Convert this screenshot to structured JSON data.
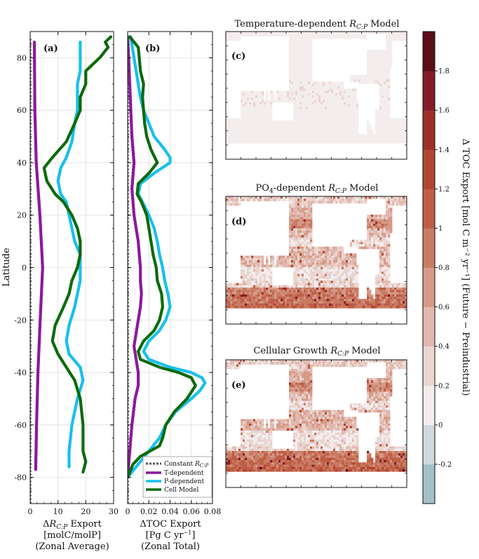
{
  "chart_data": [
    {
      "type": "line",
      "panel": "(a)",
      "orientation": "horizontal-profile",
      "xlabel_lines": [
        "ΔR_C:P Export",
        "[molC/molP]",
        "(Zonal Average)"
      ],
      "ylabel": "Latitude",
      "xlim": [
        0,
        30
      ],
      "ylim": [
        -90,
        90
      ],
      "xticks": [
        0,
        10,
        20,
        30
      ],
      "yticks": [
        -80,
        -60,
        -40,
        -20,
        0,
        20,
        40,
        60,
        80
      ],
      "grid": true,
      "series": [
        {
          "name": "Constant R_C:P",
          "color": "#555555",
          "style": "dotted",
          "lat": [
            -90,
            88
          ],
          "values": [
            0,
            0
          ]
        },
        {
          "name": "T-dependent",
          "color": "#8b1a9b",
          "lat": [
            -77,
            -60,
            -40,
            -20,
            0,
            20,
            40,
            60,
            86
          ],
          "values": [
            2.0,
            2.3,
            2.8,
            3.6,
            4.5,
            3.5,
            2.2,
            1.7,
            1.5
          ]
        },
        {
          "name": "P-dependent",
          "color": "#18bfee",
          "lat": [
            -76,
            -70,
            -60,
            -50,
            -43,
            -38,
            -33,
            -28,
            -22,
            -15,
            -10,
            -5,
            0,
            5,
            10,
            15,
            20,
            25,
            28,
            33,
            38,
            42,
            48,
            55,
            60,
            65,
            70,
            75,
            80,
            86
          ],
          "values": [
            14,
            14,
            15,
            17,
            19,
            18,
            14,
            13,
            14,
            16,
            17,
            18,
            18,
            18,
            16,
            15,
            14,
            13,
            11,
            10,
            11,
            13,
            15,
            16,
            17,
            17,
            17,
            18,
            18,
            18
          ]
        },
        {
          "name": "Cell Model",
          "color": "#0c6b0c",
          "lat": [
            -78,
            -74,
            -70,
            -60,
            -50,
            -43,
            -38,
            -33,
            -28,
            -22,
            -15,
            -10,
            -5,
            0,
            5,
            10,
            15,
            20,
            25,
            28,
            33,
            38,
            42,
            48,
            55,
            60,
            65,
            70,
            75,
            80,
            84,
            86,
            88
          ],
          "values": [
            19,
            20,
            19,
            19,
            18,
            16,
            13,
            10,
            8,
            9,
            12,
            14,
            15,
            17,
            18,
            18,
            17,
            15,
            12,
            9,
            6,
            5,
            8,
            13,
            16,
            18,
            18,
            20,
            20,
            25,
            28,
            27,
            29
          ]
        }
      ]
    },
    {
      "type": "line",
      "panel": "(b)",
      "orientation": "horizontal-profile",
      "xlabel_lines": [
        "ΔTOC Export",
        "[Pg C yr⁻¹]",
        "(Zonal Total)"
      ],
      "xlim": [
        0,
        0.08
      ],
      "ylim": [
        -90,
        90
      ],
      "xticks": [
        "0",
        "0.02",
        "0.04",
        "0.06",
        "0.08"
      ],
      "xtick_values": [
        0,
        0.02,
        0.04,
        0.06,
        0.08
      ],
      "grid": true,
      "series": [
        {
          "name": "Constant R_C:P",
          "color": "#555555",
          "style": "dotted",
          "lat": [
            -90,
            88
          ],
          "values": [
            0,
            0
          ]
        },
        {
          "name": "T-dependent",
          "color": "#8b1a9b",
          "lat": [
            -80,
            -70,
            -60,
            -50,
            -45,
            -40,
            -35,
            -30,
            -25,
            -20,
            -15,
            -10,
            -5,
            0,
            5,
            10,
            15,
            20,
            25,
            30,
            35,
            40,
            45,
            50,
            60,
            70,
            80,
            88
          ],
          "values": [
            0,
            0.002,
            0.004,
            0.007,
            0.01,
            0.01,
            0.008,
            0.006,
            0.008,
            0.01,
            0.012,
            0.013,
            0.012,
            0.012,
            0.011,
            0.01,
            0.008,
            0.006,
            0.005,
            0.004,
            0.005,
            0.006,
            0.005,
            0.004,
            0.003,
            0.002,
            0.001,
            0
          ]
        },
        {
          "name": "P-dependent",
          "color": "#18bfee",
          "lat": [
            -80,
            -75,
            -70,
            -65,
            -60,
            -55,
            -50,
            -47,
            -44,
            -42,
            -40,
            -38,
            -35,
            -32,
            -28,
            -24,
            -20,
            -15,
            -10,
            -5,
            0,
            5,
            10,
            15,
            20,
            25,
            28,
            32,
            36,
            40,
            42,
            45,
            50,
            55,
            60,
            65,
            70,
            75,
            80,
            85,
            88
          ],
          "values": [
            0,
            0.01,
            0.02,
            0.03,
            0.036,
            0.045,
            0.06,
            0.068,
            0.073,
            0.07,
            0.06,
            0.04,
            0.02,
            0.015,
            0.02,
            0.03,
            0.036,
            0.04,
            0.038,
            0.035,
            0.033,
            0.03,
            0.028,
            0.025,
            0.02,
            0.014,
            0.01,
            0.012,
            0.025,
            0.04,
            0.04,
            0.035,
            0.025,
            0.02,
            0.015,
            0.012,
            0.01,
            0.008,
            0.006,
            0.004,
            0.003
          ]
        },
        {
          "name": "Cell Model",
          "color": "#0c6b0c",
          "lat": [
            -80,
            -75,
            -72,
            -68,
            -65,
            -60,
            -55,
            -50,
            -45,
            -42,
            -40,
            -38,
            -35,
            -32,
            -28,
            -24,
            -20,
            -15,
            -10,
            -5,
            0,
            5,
            10,
            15,
            20,
            25,
            28,
            32,
            36,
            40,
            45,
            50,
            55,
            60,
            65,
            70,
            75,
            80,
            84,
            88
          ],
          "values": [
            0,
            0.005,
            0.012,
            0.03,
            0.033,
            0.036,
            0.044,
            0.056,
            0.064,
            0.06,
            0.048,
            0.03,
            0.012,
            0.01,
            0.015,
            0.025,
            0.03,
            0.033,
            0.032,
            0.028,
            0.027,
            0.024,
            0.022,
            0.02,
            0.018,
            0.013,
            0.009,
            0.01,
            0.02,
            0.028,
            0.022,
            0.018,
            0.016,
            0.015,
            0.014,
            0.015,
            0.012,
            0.011,
            0.01,
            0.002
          ]
        }
      ]
    },
    {
      "type": "heatmap",
      "panel": "(c)",
      "title_pre": "Temperature-dependent ",
      "title_sym": "R",
      "title_sub": "C:P",
      "title_post": " Model",
      "description_values": "near-uniform ΔTOC export ~0.05–0.15 over ocean"
    },
    {
      "type": "heatmap",
      "panel": "(d)",
      "title_pre": "PO",
      "title_pre_sub": "4",
      "title_mid": "-dependent ",
      "title_sym": "R",
      "title_sub": "C:P",
      "title_post": " Model"
    },
    {
      "type": "heatmap",
      "panel": "(e)",
      "title_pre": "Cellular Growth ",
      "title_sym": "R",
      "title_sub": "C:P",
      "title_post": " Model"
    }
  ],
  "colorbar": {
    "label": "Δ TOC Export [mol C m⁻² yr⁻¹] (Future − Preindustrial)",
    "vmin": -0.4,
    "vmax": 2.0,
    "ticks": [
      "-0.2",
      "0",
      "0.2",
      "0.4",
      "0.6",
      "0.8",
      "1",
      "1.2",
      "1.4",
      "1.6",
      "1.8"
    ],
    "tick_values": [
      -0.2,
      0,
      0.2,
      0.4,
      0.6,
      0.8,
      1.0,
      1.2,
      1.4,
      1.6,
      1.8
    ],
    "levels": [
      -0.4,
      -0.2,
      0,
      0.2,
      0.4,
      0.6,
      0.8,
      1.0,
      1.2,
      1.4,
      1.6,
      1.8,
      2.0
    ],
    "colors": [
      "#a3c0c8",
      "#cfd9dc",
      "#f4eded",
      "#ead5d0",
      "#e1b8ad",
      "#d59a88",
      "#c97b64",
      "#bd5e45",
      "#b04632",
      "#9c2f2a",
      "#831c27",
      "#5b0e18"
    ]
  },
  "legend": {
    "placement": "lower-right of panel (b)",
    "entries": [
      {
        "label": "Constant R_C:P",
        "color": "#555555",
        "style": "dotted"
      },
      {
        "label": "T-dependent",
        "color": "#8b1a9b"
      },
      {
        "label": "P-dependent",
        "color": "#18bfee"
      },
      {
        "label": "Cell Model",
        "color": "#0c6b0c"
      }
    ]
  },
  "text": {
    "ylabel": "Latitude",
    "a_line1_pre": "Δ",
    "a_line1_sym": "R",
    "a_line1_sub": "C:P",
    "a_line1_post": " Export",
    "a_line2": "[molC/molP]",
    "a_line3": "(Zonal Average)",
    "b_line1": "ΔTOC Export",
    "b_line2_pre": "[Pg C yr",
    "b_line2_sup": "−1",
    "b_line2_post": "]",
    "b_line3": "(Zonal Total)",
    "legend_const_pre": "Constant ",
    "legend_const_sym": "R",
    "legend_const_sub": "C:P",
    "legend_t": "T-dependent",
    "legend_p": "P-dependent",
    "legend_cell": "Cell Model",
    "cb_label": "Δ TOC Export [mol C m⁻² yr⁻¹] (Future − Preindustrial)"
  }
}
